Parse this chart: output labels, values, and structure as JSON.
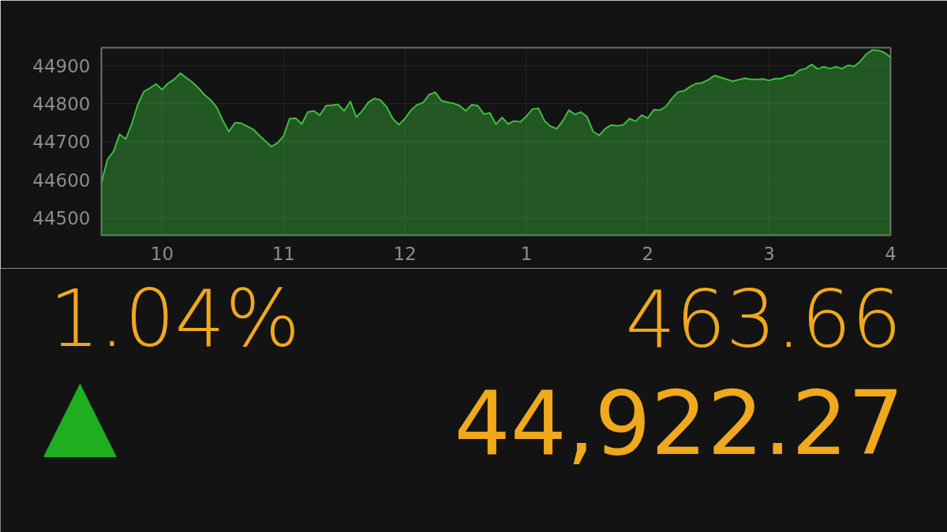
{
  "chart_data": {
    "type": "area",
    "categories": [
      null,
      null,
      null,
      null,
      null,
      null,
      null,
      null,
      null,
      null,
      "10",
      null,
      null,
      null,
      null,
      null,
      null,
      null,
      null,
      null,
      null,
      null,
      null,
      null,
      null,
      null,
      null,
      null,
      null,
      null,
      "11",
      null,
      null,
      null,
      null,
      null,
      null,
      null,
      null,
      null,
      null,
      null,
      null,
      null,
      null,
      null,
      null,
      null,
      null,
      null,
      "12",
      null,
      null,
      null,
      null,
      null,
      null,
      null,
      null,
      null,
      null,
      null,
      null,
      null,
      null,
      null,
      null,
      null,
      null,
      null,
      "1",
      null,
      null,
      null,
      null,
      null,
      null,
      null,
      null,
      null,
      null,
      null,
      null,
      null,
      null,
      null,
      null,
      null,
      null,
      null,
      "2",
      null,
      null,
      null,
      null,
      null,
      null,
      null,
      null,
      null,
      null,
      null,
      null,
      null,
      null,
      null,
      null,
      null,
      null,
      null,
      "3",
      null,
      null,
      null,
      null,
      null,
      null,
      null,
      null,
      null,
      null,
      null,
      null,
      null,
      null,
      null,
      null,
      null,
      null,
      null,
      "4"
    ],
    "series": [
      {
        "color": "#3dbf3d",
        "values": [
          44593,
          44654,
          44675,
          44720,
          44707,
          44747,
          44798,
          44832,
          44841,
          44852,
          44837,
          44854,
          44864,
          44880,
          44868,
          44856,
          44841,
          44823,
          44810,
          44790,
          44756,
          44727,
          44750,
          44749,
          44741,
          44733,
          44717,
          44702,
          44688,
          44697,
          44715,
          44761,
          44762,
          44747,
          44778,
          44781,
          44770,
          44795,
          44796,
          44798,
          44781,
          44806,
          44765,
          44782,
          44804,
          44814,
          44809,
          44791,
          44761,
          44745,
          44761,
          44783,
          44797,
          44803,
          44824,
          44830,
          44808,
          44804,
          44801,
          44795,
          44781,
          44797,
          44795,
          44773,
          44776,
          44746,
          44764,
          44747,
          44755,
          44752,
          44767,
          44786,
          44788,
          44755,
          44741,
          44734,
          44755,
          44783,
          44772,
          44778,
          44766,
          44727,
          44717,
          44735,
          44744,
          44742,
          44745,
          44761,
          44754,
          44770,
          44762,
          44784,
          44783,
          44793,
          44814,
          44831,
          44834,
          44845,
          44853,
          44855,
          44863,
          44874,
          44869,
          44864,
          44859,
          44863,
          44867,
          44864,
          44864,
          44865,
          44861,
          44866,
          44866,
          44873,
          44875,
          44888,
          44892,
          44903,
          44891,
          44897,
          44892,
          44897,
          44892,
          44901,
          44898,
          44911,
          44930,
          44941,
          44940,
          44934,
          44922
        ]
      }
    ],
    "ylim": [
      44455,
      44947
    ],
    "yticks": [
      44500,
      44600,
      44700,
      44800,
      44900
    ],
    "grid": true,
    "annotations": [
      "1.04%",
      "463.66",
      "▲",
      "44,922.27"
    ]
  }
}
